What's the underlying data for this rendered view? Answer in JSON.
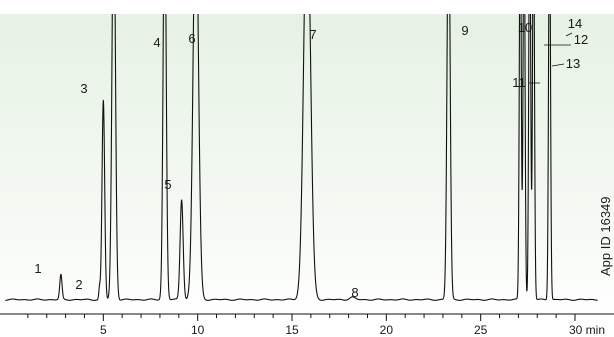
{
  "colors": {
    "background_top": "#e6f2e4",
    "background_bottom": "#ffffff",
    "trace": "#111111"
  },
  "chart_data": {
    "type": "line",
    "title": "",
    "xlabel": "",
    "ylabel": "",
    "x_unit": "min",
    "xlim": [
      -0.2,
      31.2
    ],
    "ylim": [
      0,
      100
    ],
    "x_ticks": [
      {
        "value": 5,
        "label": "5"
      },
      {
        "value": 10,
        "label": "10"
      },
      {
        "value": 15,
        "label": "15"
      },
      {
        "value": 20,
        "label": "20"
      },
      {
        "value": 25,
        "label": "25"
      },
      {
        "value": 30,
        "label": "30 min"
      }
    ],
    "baseline": 1.5,
    "peaks": [
      {
        "id": "1",
        "rt": 2.75,
        "height": 8.5,
        "width": 0.06
      },
      {
        "id": "2",
        "rt": 4.8,
        "height": 4.0,
        "width": 0.04
      },
      {
        "id": "3",
        "rt": 5.0,
        "height": 68.5,
        "width": 0.07
      },
      {
        "id": "unlabeled",
        "rt": 5.55,
        "height": 140,
        "width": 0.09
      },
      {
        "id": "4",
        "rt": 8.25,
        "height": 140,
        "width": 0.08
      },
      {
        "id": "5",
        "rt": 9.15,
        "height": 34.5,
        "width": 0.08
      },
      {
        "id": "6",
        "rt": 9.9,
        "height": 140,
        "width": 0.14
      },
      {
        "id": "7",
        "rt": 15.8,
        "height": 140,
        "width": 0.18
      },
      {
        "id": "8",
        "rt": 18.2,
        "height": 0.8,
        "width": 0.15
      },
      {
        "id": "9",
        "rt": 23.3,
        "height": 140,
        "width": 0.08
      },
      {
        "id": "10",
        "rt": 27.1,
        "height": 140,
        "width": 0.05
      },
      {
        "id": "11",
        "rt": 27.3,
        "height": 140,
        "width": 0.05
      },
      {
        "id": "12",
        "rt": 27.6,
        "height": 140,
        "width": 0.05
      },
      {
        "id": "13",
        "rt": 27.8,
        "height": 140,
        "width": 0.05
      },
      {
        "id": "14",
        "rt": 28.65,
        "height": 140,
        "width": 0.05
      }
    ],
    "peak_labels": [
      "1",
      "2",
      "3",
      "4",
      "5",
      "6",
      "7",
      "8",
      "9",
      "10",
      "11",
      "12",
      "13",
      "14"
    ],
    "annotation": "App ID 16349"
  }
}
